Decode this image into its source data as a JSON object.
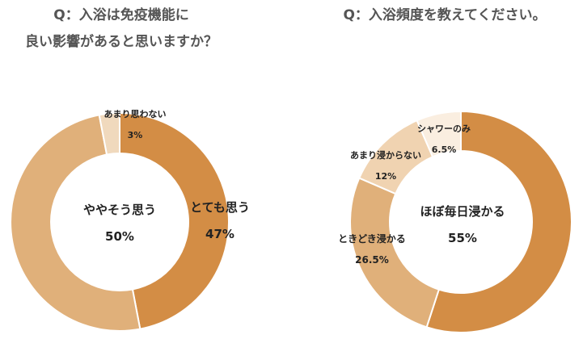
{
  "chart_data": [
    {
      "type": "pie",
      "donut": true,
      "title": [
        "Q：入浴は免疫機能に",
        "良い影響があると思いますか？"
      ],
      "slices": [
        {
          "label": "とても思う",
          "value": 47,
          "value_label": "47%",
          "color": "#d38d45"
        },
        {
          "label": "ややそう思う",
          "value": 50,
          "value_label": "50%",
          "color": "#e0b07a"
        },
        {
          "label": "あまり思わない",
          "value": 3,
          "value_label": "3%",
          "color": "#f0d9bd"
        }
      ]
    },
    {
      "type": "pie",
      "donut": true,
      "title": [
        "Q：入浴頻度を教えてください。"
      ],
      "slices": [
        {
          "label": "ほぼ毎日浸かる",
          "value": 55,
          "value_label": "55%",
          "color": "#d38d45"
        },
        {
          "label": "ときどき浸かる",
          "value": 26.5,
          "value_label": "26.5%",
          "color": "#e0b07a"
        },
        {
          "label": "あまり浸からない",
          "value": 12,
          "value_label": "12%",
          "color": "#f0d3b1"
        },
        {
          "label": "シャワーのみ",
          "value": 6.5,
          "value_label": "6.5%",
          "color": "#faeee0"
        }
      ]
    }
  ]
}
